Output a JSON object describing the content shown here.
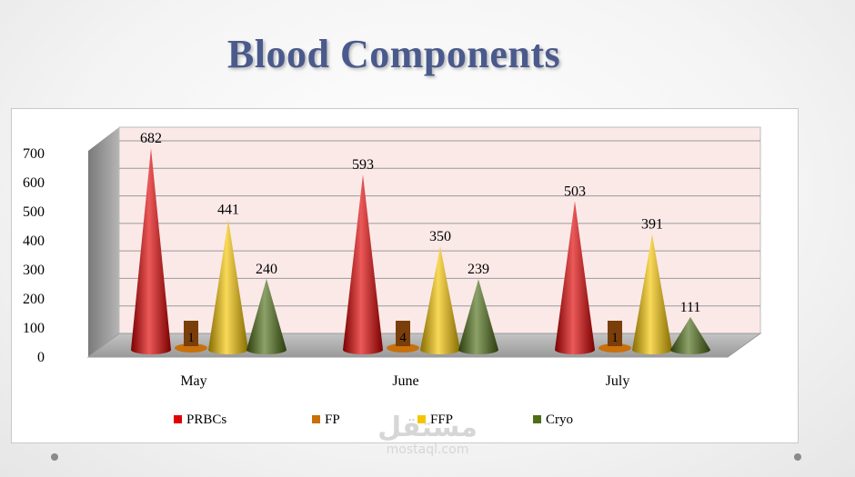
{
  "slide": {
    "title": "Blood Components",
    "watermark_logo": "مستقل",
    "watermark_url": "mostaql.com"
  },
  "chart_data": {
    "type": "bar",
    "style": "3d-cone",
    "title": "Blood Components",
    "categories": [
      "May",
      "June",
      "July"
    ],
    "series": [
      {
        "name": "PRBCs",
        "values": [
          682,
          593,
          503
        ],
        "color": "#e00000"
      },
      {
        "name": "FP",
        "values": [
          1,
          4,
          1
        ],
        "color": "#c8700a"
      },
      {
        "name": "FFP",
        "values": [
          441,
          350,
          391
        ],
        "color": "#f5c400"
      },
      {
        "name": "Cryo",
        "values": [
          240,
          239,
          111
        ],
        "color": "#4e6e16"
      }
    ],
    "yticks": [
      0,
      100,
      200,
      300,
      400,
      500,
      600,
      700
    ],
    "ylim": [
      0,
      750
    ],
    "xlabel": "",
    "ylabel": "",
    "grid": true,
    "legend": "bottom"
  }
}
